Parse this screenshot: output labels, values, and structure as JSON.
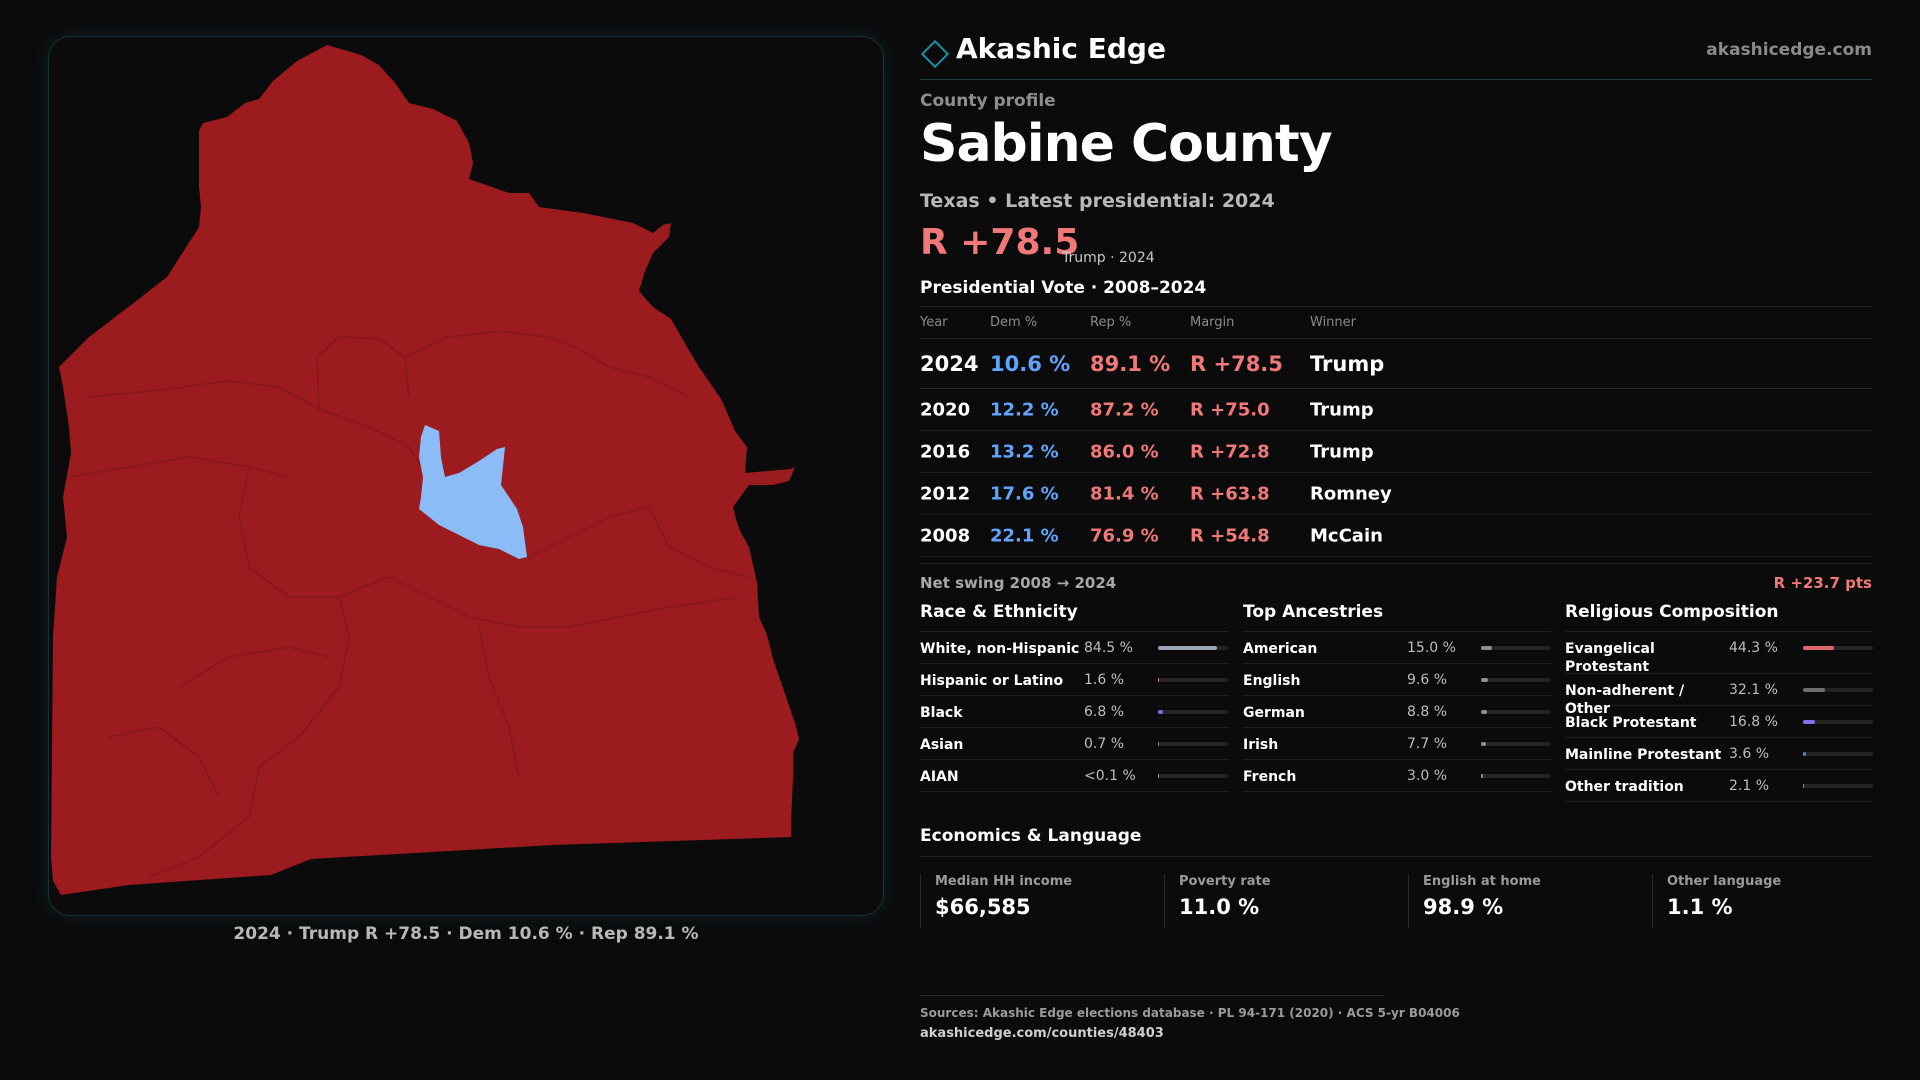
{
  "brand": {
    "name": "Akashic Edge",
    "url": "akashicedge.com"
  },
  "profile": {
    "kicker": "County profile",
    "title": "Sabine County",
    "subline": "Texas • Latest presidential: 2024",
    "margin": "R +78.5",
    "margin_note": "Trump · 2024"
  },
  "map": {
    "caption": "2024 · Trump R +78.5 · Dem 10.6 % · Rep 89.1 %",
    "colors": {
      "rep": "#9b1b1e",
      "dem": "#8cbcf7",
      "precinct_line": "#86181b"
    }
  },
  "vote": {
    "title": "Presidential Vote · 2008–2024",
    "headers": {
      "year": "Year",
      "dem": "Dem %",
      "rep": "Rep %",
      "margin": "Margin",
      "winner": "Winner"
    },
    "rows": [
      {
        "year": "2024",
        "dem": "10.6 %",
        "rep": "89.1 %",
        "margin": "R +78.5",
        "winner": "Trump"
      },
      {
        "year": "2020",
        "dem": "12.2 %",
        "rep": "87.2 %",
        "margin": "R +75.0",
        "winner": "Trump"
      },
      {
        "year": "2016",
        "dem": "13.2 %",
        "rep": "86.0 %",
        "margin": "R +72.8",
        "winner": "Trump"
      },
      {
        "year": "2012",
        "dem": "17.6 %",
        "rep": "81.4 %",
        "margin": "R +63.8",
        "winner": "Romney"
      },
      {
        "year": "2008",
        "dem": "22.1 %",
        "rep": "76.9 %",
        "margin": "R +54.8",
        "winner": "McCain"
      }
    ],
    "swing_label": "Net swing 2008 → 2024",
    "swing_value": "R +23.7 pts"
  },
  "race": {
    "title": "Race & Ethnicity",
    "items": [
      {
        "label": "White, non-Hispanic",
        "value": "84.5 %",
        "share": 0.845,
        "color": "#9aa4b4"
      },
      {
        "label": "Hispanic or Latino",
        "value": "1.6 %",
        "share": 0.016,
        "color": "#d98a2b"
      },
      {
        "label": "Black",
        "value": "6.8 %",
        "share": 0.068,
        "color": "#7b6cf0"
      },
      {
        "label": "Asian",
        "value": "0.7 %",
        "share": 0.007,
        "color": "#4d8a5a"
      },
      {
        "label": "AIAN",
        "value": "<0.1 %",
        "share": 0.0,
        "color": "#9aa4b4"
      }
    ]
  },
  "ancestry": {
    "title": "Top Ancestries",
    "items": [
      {
        "label": "American",
        "value": "15.0 %",
        "share": 0.15,
        "color": "#8f8f8f"
      },
      {
        "label": "English",
        "value": "9.6 %",
        "share": 0.096,
        "color": "#8f8f8f"
      },
      {
        "label": "German",
        "value": "8.8 %",
        "share": 0.088,
        "color": "#8f8f8f"
      },
      {
        "label": "Irish",
        "value": "7.7 %",
        "share": 0.077,
        "color": "#8f8f8f"
      },
      {
        "label": "French",
        "value": "3.0 %",
        "share": 0.03,
        "color": "#8f8f8f"
      }
    ]
  },
  "religion": {
    "title": "Religious Composition",
    "items": [
      {
        "label": "Evangelical Protestant",
        "value": "44.3 %",
        "share": 0.443,
        "color": "#e06b6b"
      },
      {
        "label": "Non-adherent / Other",
        "value": "32.1 %",
        "share": 0.321,
        "color": "#6f6f6f"
      },
      {
        "label": "Black Protestant",
        "value": "16.8 %",
        "share": 0.168,
        "color": "#8a6cf0"
      },
      {
        "label": "Mainline Protestant",
        "value": "3.6 %",
        "share": 0.036,
        "color": "#4f7fd8"
      },
      {
        "label": "Other tradition",
        "value": "2.1 %",
        "share": 0.021,
        "color": "#8f8f8f"
      }
    ]
  },
  "econ": {
    "title": "Economics & Language",
    "items": [
      {
        "label": "Median HH income",
        "value": "$66,585"
      },
      {
        "label": "Poverty rate",
        "value": "11.0 %"
      },
      {
        "label": "English at home",
        "value": "98.9 %"
      },
      {
        "label": "Other language",
        "value": "1.1 %"
      }
    ]
  },
  "footer": {
    "sources": "Sources: Akashic Edge elections database · PL 94-171 (2020) · ACS 5-yr B04006",
    "url": "akashicedge.com/counties/48403"
  }
}
